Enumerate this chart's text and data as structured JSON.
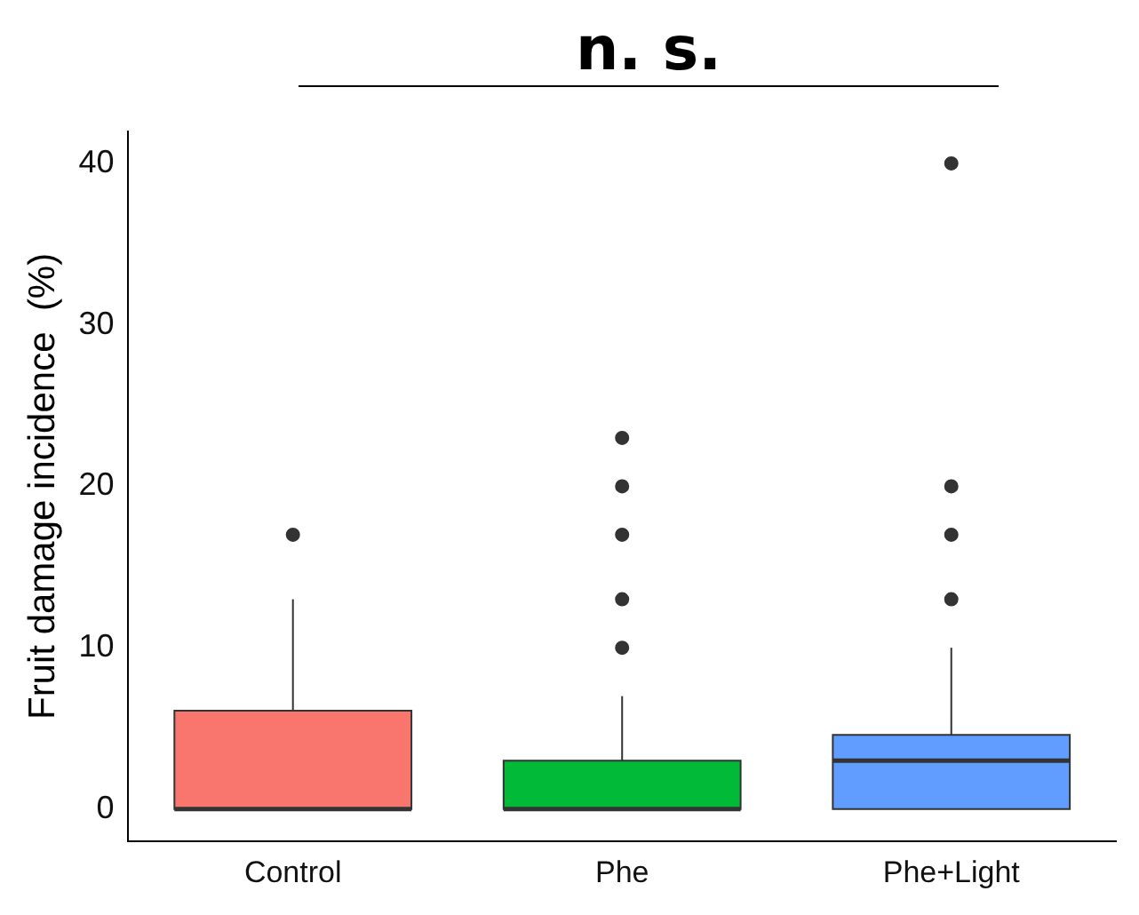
{
  "chart_data": {
    "type": "box",
    "ylabel": "Fruit damage incidence  (%)",
    "categories": [
      "Control",
      "Phe",
      "Phe+Light"
    ],
    "colors": [
      "#f8766d",
      "#00ba38",
      "#619cff"
    ],
    "boxes": [
      {
        "low": 0,
        "q1": 0,
        "median": 0,
        "q3": 6.1,
        "high": 13,
        "outliers": [
          17
        ]
      },
      {
        "low": 0,
        "q1": 0,
        "median": 0,
        "q3": 3,
        "high": 7,
        "outliers": [
          10,
          13,
          17,
          20,
          23
        ]
      },
      {
        "low": 0,
        "q1": 0,
        "median": 3,
        "q3": 4.6,
        "high": 10,
        "outliers": [
          13,
          17,
          20,
          40
        ]
      }
    ],
    "ylim": [
      -2,
      42
    ],
    "yticks": [
      0,
      10,
      20,
      30,
      40
    ],
    "grid": false,
    "legend": false,
    "annotations": [
      "n. s."
    ]
  }
}
